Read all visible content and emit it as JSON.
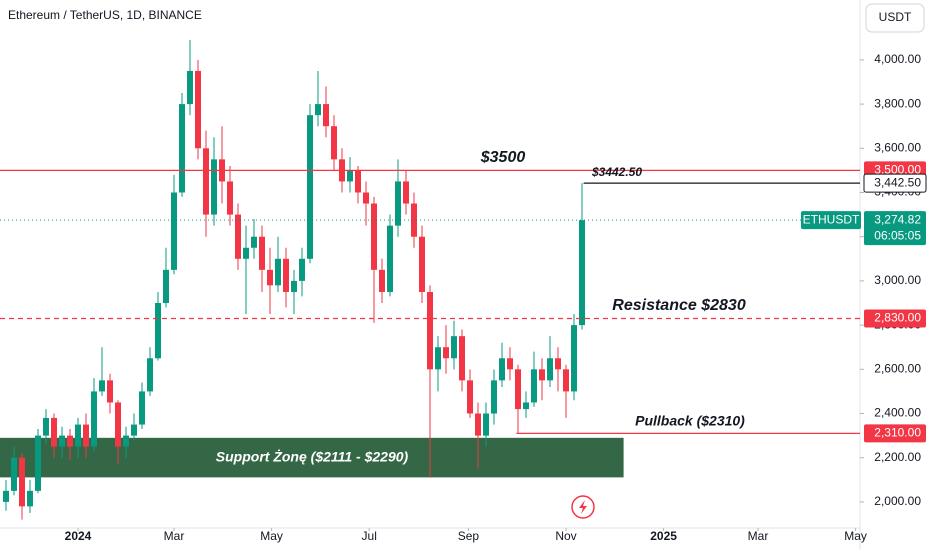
{
  "chart_data": {
    "type": "candlestick",
    "title": "Ethereum / TetherUS, 1D, BINANCE",
    "currency": "USDT",
    "up_color": "#089981",
    "down_color": "#f23645",
    "x": [
      -45,
      -40,
      -35,
      -30,
      -25,
      -20,
      -15,
      -10,
      -5,
      0,
      5,
      10,
      15,
      20,
      25,
      30,
      35,
      40,
      45,
      50,
      55,
      60,
      65,
      70,
      75,
      80,
      85,
      90,
      95,
      100,
      105,
      110,
      115,
      120,
      125,
      130,
      135,
      140,
      145,
      150,
      155,
      160,
      165,
      170,
      175,
      180,
      185,
      190,
      195,
      200,
      205,
      210,
      215,
      220,
      225,
      230,
      235,
      240,
      245,
      250,
      255,
      260,
      265,
      270,
      275,
      280,
      285,
      290,
      295,
      300,
      305,
      310,
      315
    ],
    "open": [
      2000,
      2050,
      2200,
      1980,
      2050,
      2300,
      2380,
      2250,
      2300,
      2250,
      2350,
      2250,
      2500,
      2550,
      2450,
      2250,
      2300,
      2350,
      2500,
      2650,
      2900,
      3050,
      3400,
      3800,
      3950,
      3600,
      3300,
      3550,
      3450,
      3300,
      3100,
      3150,
      3200,
      3050,
      2980,
      3100,
      2950,
      3000,
      3100,
      3750,
      3800,
      3700,
      3550,
      3450,
      3500,
      3400,
      3350,
      3050,
      2950,
      3250,
      3450,
      3350,
      3200,
      2950,
      2600,
      2700,
      2650,
      2750,
      2550,
      2400,
      2300,
      2400,
      2550,
      2650,
      2600,
      2420,
      2450,
      2600,
      2550,
      2650,
      2600,
      2500,
      2800
    ],
    "high": [
      2100,
      2250,
      2220,
      2100,
      2330,
      2420,
      2400,
      2340,
      2330,
      2380,
      2400,
      2560,
      2700,
      2580,
      2460,
      2340,
      2400,
      2540,
      2700,
      2950,
      3150,
      3480,
      3850,
      4090,
      4000,
      3680,
      3650,
      3700,
      3520,
      3350,
      3250,
      3280,
      3250,
      3150,
      3200,
      3150,
      3050,
      3150,
      3800,
      3950,
      3880,
      3750,
      3600,
      3560,
      3520,
      3450,
      3380,
      3100,
      3300,
      3550,
      3500,
      3400,
      3250,
      2980,
      2750,
      2800,
      2820,
      2780,
      2600,
      2450,
      2450,
      2600,
      2720,
      2700,
      2620,
      2500,
      2680,
      2650,
      2750,
      2700,
      2620,
      2850,
      3442.5
    ],
    "low": [
      1960,
      2030,
      1920,
      1950,
      2040,
      2260,
      2200,
      2200,
      2190,
      2200,
      2200,
      2230,
      2480,
      2400,
      2170,
      2200,
      2280,
      2330,
      2480,
      2640,
      2880,
      3030,
      3380,
      3750,
      3550,
      3200,
      3250,
      3350,
      3250,
      3050,
      2850,
      3100,
      2950,
      2850,
      2950,
      2880,
      2850,
      2930,
      3080,
      3700,
      3650,
      3500,
      3400,
      3400,
      3350,
      3250,
      2810,
      2900,
      2930,
      3200,
      3300,
      3150,
      2900,
      2110,
      2500,
      2580,
      2600,
      2500,
      2380,
      2150,
      2250,
      2350,
      2520,
      2550,
      2310,
      2380,
      2430,
      2460,
      2520,
      2500,
      2380,
      2460,
      2780
    ],
    "close": [
      2050,
      2200,
      1980,
      2050,
      2300,
      2380,
      2250,
      2300,
      2250,
      2350,
      2250,
      2500,
      2550,
      2450,
      2250,
      2300,
      2350,
      2500,
      2650,
      2900,
      3050,
      3400,
      3800,
      3950,
      3600,
      3300,
      3550,
      3450,
      3300,
      3100,
      3150,
      3200,
      3050,
      2980,
      3100,
      2950,
      3000,
      3100,
      3750,
      3800,
      3700,
      3550,
      3450,
      3500,
      3400,
      3350,
      3050,
      2950,
      3250,
      3450,
      3350,
      3200,
      2950,
      2600,
      2700,
      2650,
      2750,
      2550,
      2400,
      2300,
      2400,
      2550,
      2650,
      2600,
      2420,
      2450,
      2600,
      2550,
      2650,
      2600,
      2500,
      2800,
      3274.82
    ],
    "xlim": [
      -48.75,
      488.75
    ],
    "xticks": [
      {
        "value": 0,
        "label": "2024"
      },
      {
        "value": 60,
        "label": "Mar"
      },
      {
        "value": 121,
        "label": "May"
      },
      {
        "value": 182,
        "label": "Jul"
      },
      {
        "value": 244,
        "label": "Sep"
      },
      {
        "value": 305,
        "label": "Nov"
      },
      {
        "value": 366,
        "label": "2025"
      },
      {
        "value": 425,
        "label": "Mar"
      },
      {
        "value": 486,
        "label": "May"
      }
    ],
    "ylim": [
      1882,
      4271
    ],
    "yticks": [
      {
        "value": 2000,
        "label": "2,000.00"
      },
      {
        "value": 2200,
        "label": "2,200.00"
      },
      {
        "value": 2400,
        "label": "2,400.00"
      },
      {
        "value": 2600,
        "label": "2,600.00"
      },
      {
        "value": 2800,
        "label": "2,800.00"
      },
      {
        "value": 3000,
        "label": "3,000.00"
      },
      {
        "value": 3200,
        "label": "3,200.00"
      },
      {
        "value": 3400,
        "label": "3,400.00"
      },
      {
        "value": 3600,
        "label": "3,600.00"
      },
      {
        "value": 3800,
        "label": "3,800.00"
      },
      {
        "value": 4000,
        "label": "4,000.00"
      }
    ],
    "levels": [
      {
        "value": 3500,
        "label": "3,500.00",
        "color": "#f23645",
        "dashed": false
      },
      {
        "value": 3442.5,
        "label": "3,442.50",
        "color": "#131722",
        "dashed": false,
        "start_x": 316
      },
      {
        "value": 2830,
        "label": "2,830.00",
        "color": "#f23645",
        "dashed": true
      },
      {
        "value": 2310,
        "label": "2,310.00",
        "color": "#f23645",
        "dashed": false,
        "start_x": 274
      }
    ],
    "last_price": {
      "symbol": "ETHUSDT",
      "value": 3274.82,
      "label": "3,274.82",
      "countdown": "06:05:05",
      "color": "#089981"
    },
    "zone": {
      "low": 2111,
      "high": 2290,
      "end_x": 341,
      "color": "#1e5631",
      "label": "Support Żonę ($2111 - $2290)"
    },
    "annotations": [
      "$3500",
      "$3442.50",
      "Resistance $2830",
      "Pullback ($2310)"
    ]
  }
}
